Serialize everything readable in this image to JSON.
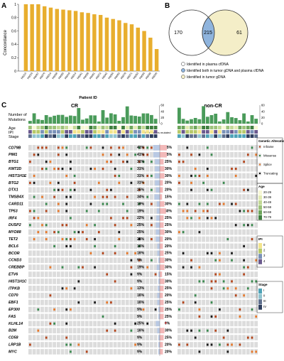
{
  "panels": {
    "a": "A",
    "b": "B",
    "c": "C"
  },
  "chart_data": {
    "type": "bar",
    "ylabel": "Concordance",
    "xlabel": "Patient ID",
    "ylim": [
      0,
      1
    ],
    "yticks": [
      "0",
      "0.2",
      "0.4",
      "0.6",
      "0.8",
      "1"
    ],
    "categories": [
      "R0315",
      "R0010",
      "R0057",
      "R0076",
      "R0016",
      "R0068",
      "R0005",
      "R0019",
      "R0014",
      "R0041",
      "R0009",
      "R0001",
      "R0072",
      "R0042",
      "R0056",
      "R0065",
      "R0078",
      "R0071",
      "R0053",
      "R0040",
      "R0038",
      "R0036"
    ],
    "values": [
      1.0,
      1.0,
      1.0,
      0.97,
      0.95,
      0.93,
      0.92,
      0.91,
      0.9,
      0.88,
      0.87,
      0.85,
      0.84,
      0.8,
      0.78,
      0.76,
      0.72,
      0.7,
      0.65,
      0.6,
      0.5,
      0.33
    ],
    "color": "#e8ae2e"
  },
  "venn": {
    "left": "170",
    "middle": "215",
    "right": "61",
    "legend": [
      "Identified in plasma cfDNA",
      "Identified both in tumor gDNA and plasma cfDNA",
      "Identified in tumor gDNA"
    ],
    "left_color": "#ffffff",
    "middle_color": "#8fb4dd",
    "right_color": "#f4eec8"
  },
  "oncoprint": {
    "groups": [
      "CR",
      "non-CR"
    ],
    "track_labels": [
      "Number of",
      "Mutations",
      "Age",
      "IPI",
      "Stage"
    ],
    "tmb_ticks_left": [
      "60",
      "40",
      "20",
      "0"
    ],
    "tmb_ticks_right": [
      "60",
      "40",
      "20",
      "0"
    ],
    "pct_header": "% of tumors mutated",
    "genes": [
      "CD79B",
      "PIM1",
      "BTG1",
      "KMT2D",
      "HIST1H1E",
      "BTG2",
      "DTX1",
      "TMSB4X",
      "CARD11",
      "TP53",
      "IRF4",
      "DUSP2",
      "MYD88",
      "TET2",
      "BCL6",
      "BCOR",
      "CCND3",
      "CREBBP",
      "ETV6",
      "HIST1H1C",
      "ITPKB",
      "CD70",
      "EBF1",
      "EP300",
      "FAS",
      "KLHL14",
      "B2M",
      "CD58",
      "LRP1B",
      "MYC"
    ],
    "pct_cr": [
      "41%",
      "41%",
      "31%",
      "31%",
      "31%",
      "31%",
      "25%",
      "34%",
      "19%",
      "19%",
      "22%",
      "25%",
      "25%",
      "25%",
      "16%",
      "16%",
      "9%",
      "19%",
      "9%",
      "9%",
      "13%",
      "16%",
      "16%",
      "9%",
      "9%",
      "25%",
      "16%",
      "9%",
      "9%",
      "9%"
    ],
    "pct_noncr": [
      "45%",
      "45%",
      "25%",
      "30%",
      "30%",
      "20%",
      "20%",
      "15%",
      "30%",
      "40%",
      "25%",
      "25%",
      "30%",
      "20%",
      "20%",
      "25%",
      "30%",
      "30%",
      "15%",
      "30%",
      "25%",
      "20%",
      "25%",
      "25%",
      "25%",
      "0%",
      "30%",
      "25%",
      "20%",
      "20%"
    ],
    "star": "*",
    "legends": {
      "genetic_title": "Genetic Alteration",
      "genetic": [
        {
          "label": "Inframe",
          "color": "#b5451b"
        },
        {
          "label": "Missense",
          "color": "#3a8a4f"
        },
        {
          "label": "Splice",
          "color": "#e87a2c"
        },
        {
          "label": "Truncating",
          "color": "#1a1a1a"
        }
      ],
      "age_title": "Age",
      "age": [
        {
          "label": "20-29",
          "color": "#f7f7d4"
        },
        {
          "label": "30-39",
          "color": "#e2ebb3"
        },
        {
          "label": "40-49",
          "color": "#c2d895"
        },
        {
          "label": "50-59",
          "color": "#9cc27a"
        },
        {
          "label": "60-69",
          "color": "#6ea65c"
        },
        {
          "label": "70-79",
          "color": "#3f7f3f"
        }
      ],
      "ipi_title": "IPI",
      "ipi": [
        {
          "label": "0",
          "color": "#f3e48c"
        },
        {
          "label": "2",
          "color": "#b7c96a"
        },
        {
          "label": "3",
          "color": "#7a92b8"
        },
        {
          "label": "4",
          "color": "#6b5a8e"
        }
      ],
      "stage_title": "Stage",
      "stage": [
        {
          "label": "I",
          "color": "#4ea3b7"
        },
        {
          "label": "II",
          "color": "#8fc3cf"
        },
        {
          "label": "III",
          "color": "#5f6f8e"
        },
        {
          "label": "IV",
          "color": "#2f3f5e"
        }
      ]
    },
    "colors": {
      "tmb": "#4a9b5a",
      "bg": "#dcdcdc",
      "cr_bar": "#b9c9e3",
      "noncr_bar": "#f2b8b8"
    }
  }
}
